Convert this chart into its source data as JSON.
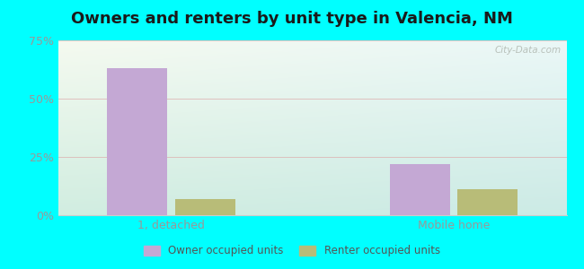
{
  "title": "Owners and renters by unit type in Valencia, NM",
  "categories": [
    "1, detached",
    "Mobile home"
  ],
  "owner_values": [
    63.0,
    22.0
  ],
  "renter_values": [
    7.0,
    11.0
  ],
  "owner_color": "#c4a8d4",
  "renter_color": "#b8bc78",
  "ylim": [
    0,
    75
  ],
  "yticks": [
    0,
    25,
    50,
    75
  ],
  "yticklabels": [
    "0%",
    "25%",
    "50%",
    "75%"
  ],
  "bar_width": 0.32,
  "group_positions": [
    1.0,
    2.5
  ],
  "bg_color_top_left": "#f5f9f0",
  "bg_color_top_right": "#e8f4f4",
  "bg_color_bottom": "#cce8e0",
  "outer_color": "#00ffff",
  "title_fontsize": 13,
  "tick_fontsize": 9,
  "legend_labels": [
    "Owner occupied units",
    "Renter occupied units"
  ],
  "watermark": "City-Data.com",
  "grid_color": "#ddaaaa",
  "spine_color": "#cccccc",
  "tick_color": "#999999"
}
